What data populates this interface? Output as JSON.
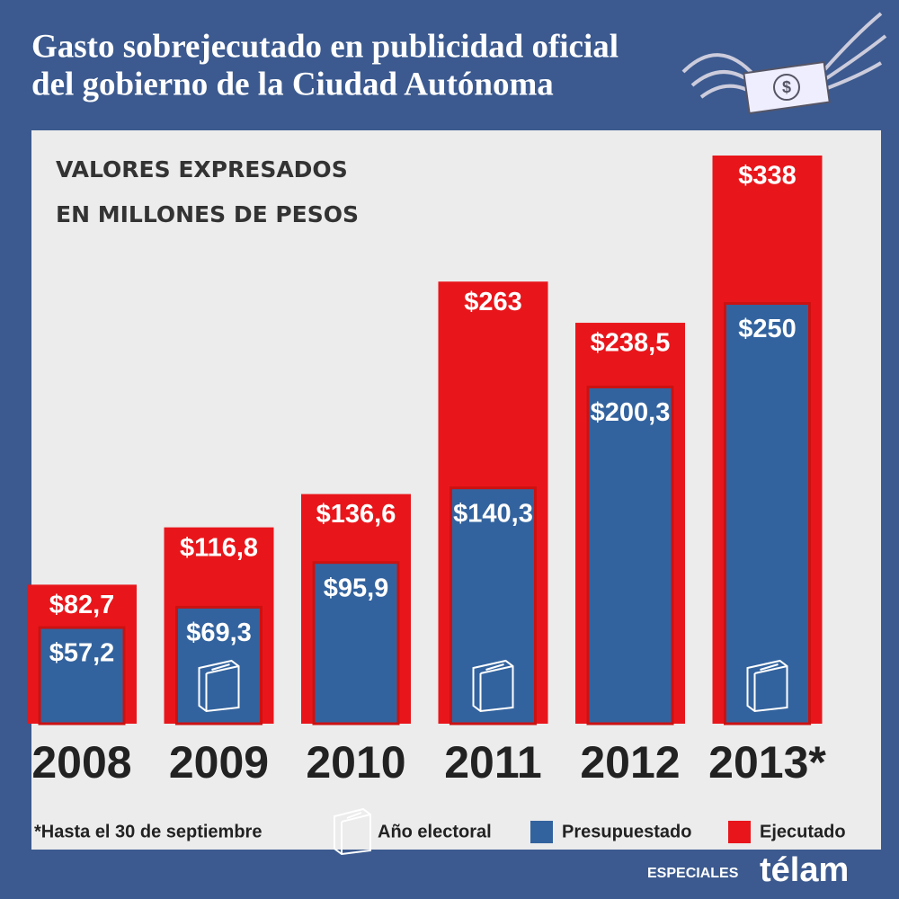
{
  "chart_data": {
    "type": "overlap-bar",
    "title": [
      "Gasto sobrejecutado en publicidad oficial",
      "del gobierno de la Ciudad Autónoma"
    ],
    "subtitle": [
      "VALORES EXPRESADOS",
      "EN MILLONES DE PESOS"
    ],
    "categories": [
      "2008",
      "2009",
      "2010",
      "2011",
      "2012",
      "2013*"
    ],
    "series": [
      {
        "name": "Ejecutado",
        "color": "#e8161b",
        "values": [
          82.7,
          116.8,
          136.6,
          263,
          238.5,
          338
        ],
        "value_labels": [
          "$82,7",
          "$116,8",
          "$136,6",
          "$263",
          "$238,5",
          "$338"
        ]
      },
      {
        "name": "Presupuestado",
        "color": "#33639e",
        "values": [
          57.2,
          69.3,
          95.9,
          140.3,
          200.3,
          250
        ],
        "value_labels": [
          "$57,2",
          "$69,3",
          "$95,9",
          "$140,3",
          "$200,3",
          "$250"
        ]
      }
    ],
    "electoral": [
      false,
      true,
      false,
      true,
      false,
      true
    ],
    "notes": [
      "*Hasta el 30 de septiembre",
      "Año electoral"
    ],
    "footer": {
      "section": "ESPECIALES",
      "brand": "télam"
    }
  }
}
